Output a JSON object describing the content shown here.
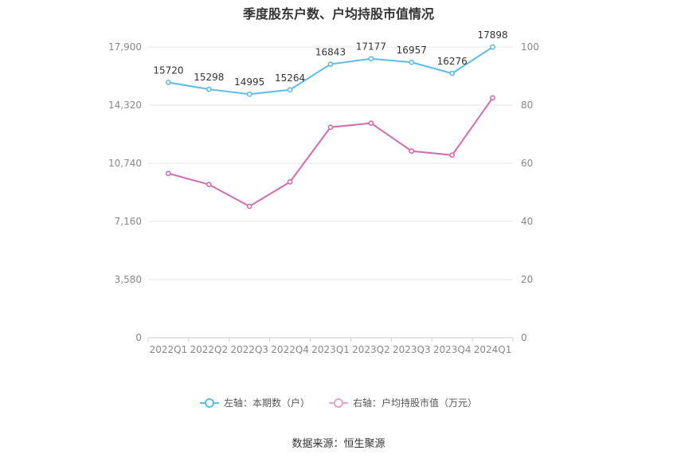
{
  "title": "季度股东户数、户均持股市值情况",
  "source_text": "数据来源：恒生聚源",
  "colors": {
    "left_series": "#5bbbe9",
    "right_series": "#d46ab0",
    "grid": "#e6e6ee",
    "axis_text": "#888888"
  },
  "chart_data": {
    "type": "line",
    "categories": [
      "2022Q1",
      "2022Q2",
      "2022Q3",
      "2022Q4",
      "2023Q1",
      "2023Q2",
      "2023Q3",
      "2023Q4",
      "2024Q1"
    ],
    "left_axis": {
      "ylim": [
        0,
        17900
      ],
      "ticks": [
        0,
        3580,
        7160,
        10740,
        14320,
        17900
      ],
      "tick_labels": [
        "0",
        "3,580",
        "7,160",
        "10,740",
        "14,320",
        "17,900"
      ]
    },
    "right_axis": {
      "ylim": [
        0,
        100
      ],
      "ticks": [
        0,
        20,
        40,
        60,
        80,
        100
      ],
      "tick_labels": [
        "0",
        "20",
        "40",
        "60",
        "80",
        "100"
      ]
    },
    "series": [
      {
        "name": "左轴：本期数（户）",
        "axis": "left",
        "values": [
          15720,
          15298,
          14995,
          15264,
          16843,
          17177,
          16957,
          16276,
          17898
        ],
        "labels": [
          "15720",
          "15298",
          "14995",
          "15264",
          "16843",
          "17177",
          "16957",
          "16276",
          "17898"
        ]
      },
      {
        "name": "右轴：户均持股市值（万元）",
        "axis": "right",
        "values": [
          56.5,
          52.7,
          45.2,
          53.6,
          72.4,
          73.8,
          64.2,
          62.8,
          82.5
        ]
      }
    ],
    "legend_position": "bottom",
    "grid": true
  }
}
